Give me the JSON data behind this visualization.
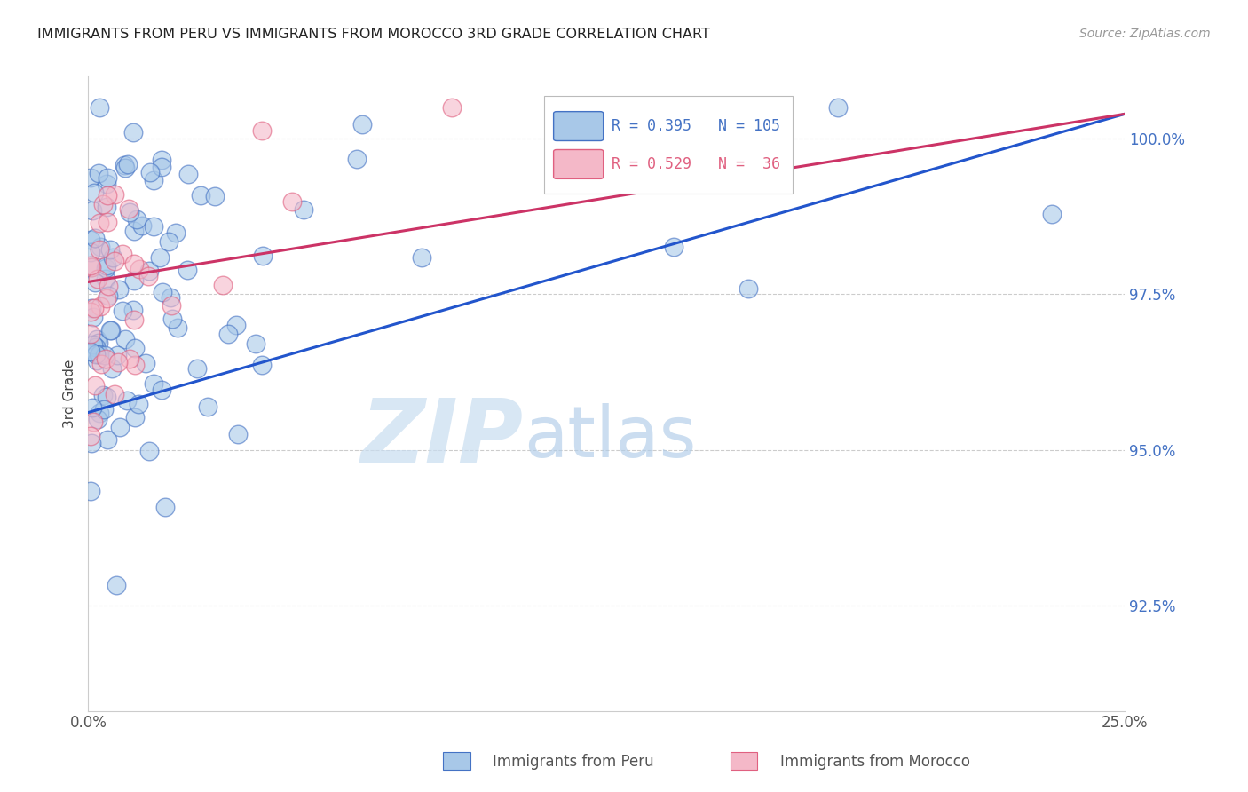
{
  "title": "IMMIGRANTS FROM PERU VS IMMIGRANTS FROM MOROCCO 3RD GRADE CORRELATION CHART",
  "source": "Source: ZipAtlas.com",
  "ylabel": "3rd Grade",
  "ytick_labels": [
    "100.0%",
    "97.5%",
    "95.0%",
    "92.5%"
  ],
  "ytick_values": [
    1.0,
    0.975,
    0.95,
    0.925
  ],
  "xmin": 0.0,
  "xmax": 0.25,
  "ymin": 0.908,
  "ymax": 1.01,
  "watermark_zip": "ZIP",
  "watermark_atlas": "atlas",
  "legend_peru_r": "R = 0.395",
  "legend_peru_n": "N = 105",
  "legend_morocco_r": "R = 0.529",
  "legend_morocco_n": "N =  36",
  "blue_fill": "#a8c8e8",
  "blue_edge": "#4472c4",
  "pink_fill": "#f4b8c8",
  "pink_edge": "#e06080",
  "blue_line_color": "#2255cc",
  "pink_line_color": "#cc3366",
  "grid_color": "#cccccc",
  "background_color": "#ffffff",
  "right_label_color": "#4472c4",
  "title_color": "#222222",
  "legend_border": "#bbbbbb",
  "peru_line_x0": 0.0,
  "peru_line_x1": 0.25,
  "peru_line_y0": 0.956,
  "peru_line_y1": 1.004,
  "morocco_line_x0": 0.0,
  "morocco_line_x1": 0.25,
  "morocco_line_y0": 0.977,
  "morocco_line_y1": 1.004
}
